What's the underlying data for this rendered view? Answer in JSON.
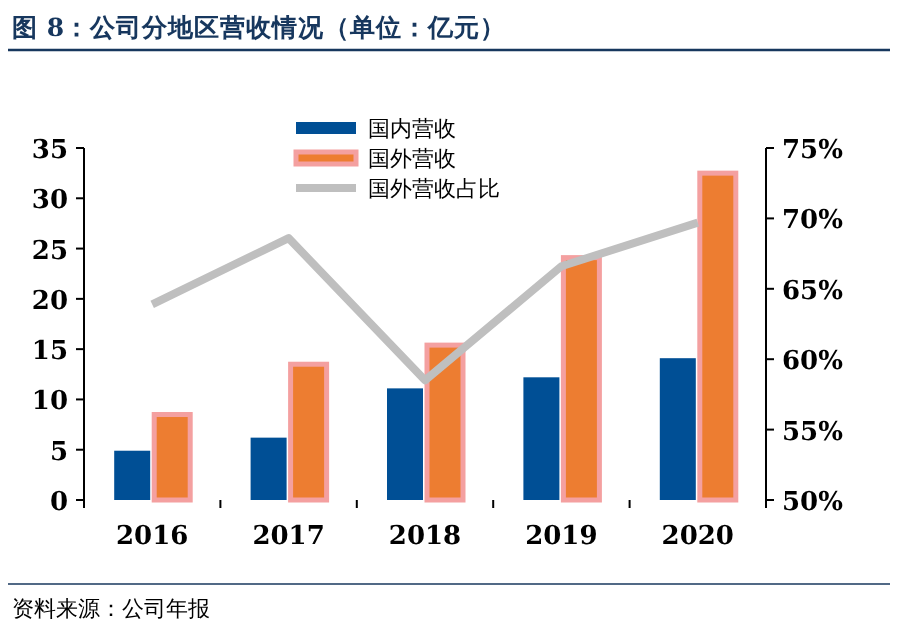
{
  "chart_data": {
    "type": "bar",
    "title": "图 8：公司分地区营收情况（单位：亿元）",
    "annotations": [
      "资料来源：公司年报"
    ],
    "categories": [
      "2016",
      "2017",
      "2018",
      "2019",
      "2020"
    ],
    "series": [
      {
        "name": "国内营收",
        "color": "#004f95",
        "values": [
          4.9,
          6.2,
          11.1,
          12.2,
          14.1
        ]
      },
      {
        "name": "国外营收",
        "color": "#ed7d31",
        "values": [
          8.5,
          13.5,
          15.4,
          24.1,
          32.5
        ]
      },
      {
        "name": "国外营收占比",
        "type": "line",
        "axis": "y2",
        "color": "#bfbfbf",
        "values": [
          63.9,
          68.6,
          58.5,
          66.6,
          69.7
        ]
      }
    ],
    "ylim": [
      0,
      35
    ],
    "yticks": [
      0,
      5,
      10,
      15,
      20,
      25,
      30,
      35
    ],
    "y2lim": [
      50,
      75
    ],
    "y2ticks": [
      {
        "value": 50,
        "label": "50%"
      },
      {
        "value": 55,
        "label": "55%"
      },
      {
        "value": 60,
        "label": "60%"
      },
      {
        "value": 65,
        "label": "65%"
      },
      {
        "value": 70,
        "label": "70%"
      },
      {
        "value": 75,
        "label": "75%"
      }
    ],
    "legend": "top",
    "grid": false,
    "marker": "none",
    "line_style": "solid"
  }
}
